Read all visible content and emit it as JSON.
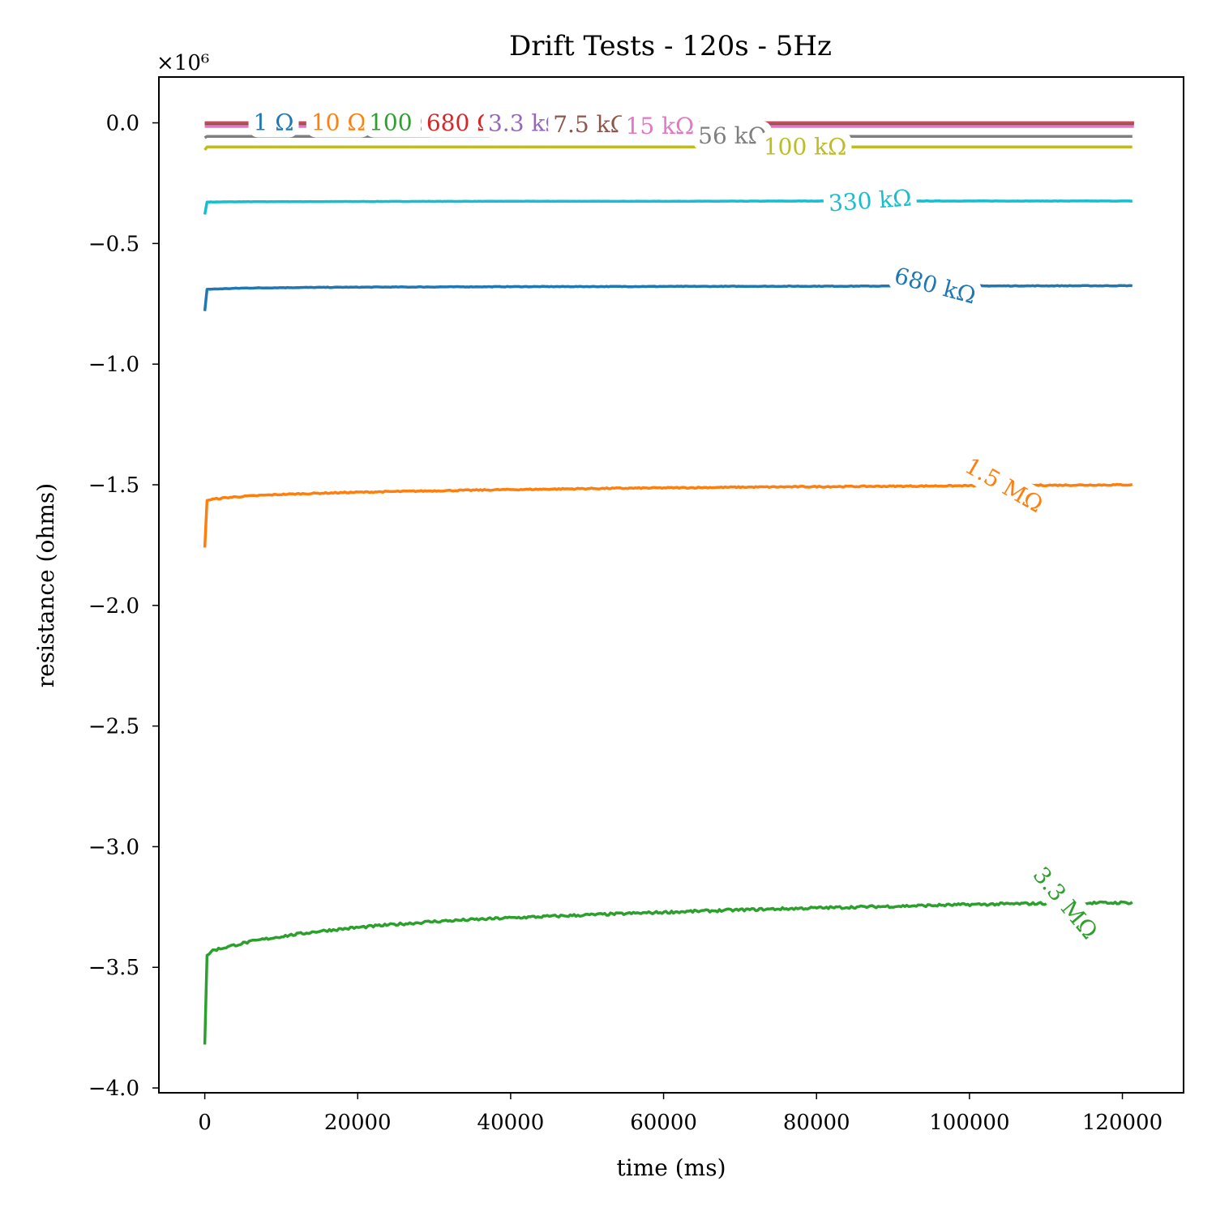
{
  "chart_data": {
    "type": "line",
    "title": "Drift Tests - 120s - 5Hz",
    "xlabel": "time (ms)",
    "ylabel": "resistance (ohms)",
    "y_multiplier_label": "×10⁶",
    "y_scale_factor": 1000000,
    "xlim": [
      -6000,
      128000
    ],
    "ylim": [
      -4020000,
      190000
    ],
    "x_ticks": [
      0,
      20000,
      40000,
      60000,
      80000,
      100000,
      120000
    ],
    "y_ticks": [
      0.0,
      -0.5,
      -1.0,
      -1.5,
      -2.0,
      -2.5,
      -3.0,
      -3.5,
      -4.0
    ],
    "x_tick_labels": [
      "0",
      "20000",
      "40000",
      "60000",
      "80000",
      "100000",
      "120000"
    ],
    "y_tick_labels": [
      "0.0",
      "−0.5",
      "−1.0",
      "−1.5",
      "−2.0",
      "−2.5",
      "−3.0",
      "−3.5",
      "−4.0"
    ],
    "grid": false,
    "legend": "inline labels",
    "series": [
      {
        "name": "1 Ω",
        "color": "#1f77b4",
        "x": [
          0,
          121500
        ],
        "y": [
          -1,
          -1
        ],
        "label_x": 9000,
        "label_angle": 0
      },
      {
        "name": "10 Ω",
        "color": "#ff7f0e",
        "x": [
          0,
          121500
        ],
        "y": [
          -10,
          -10
        ],
        "label_x": 17500,
        "label_angle": 0
      },
      {
        "name": "100 Ω",
        "color": "#2ca02c",
        "x": [
          0,
          121500
        ],
        "y": [
          -100,
          -100
        ],
        "label_x": 26000,
        "label_angle": 0
      },
      {
        "name": "680 Ω",
        "color": "#d62728",
        "x": [
          0,
          121500
        ],
        "y": [
          -680,
          -680
        ],
        "label_x": 33500,
        "label_angle": 0
      },
      {
        "name": "3.3 kΩ",
        "color": "#9467bd",
        "x": [
          0,
          121500
        ],
        "y": [
          -3300,
          -3300
        ],
        "label_x": 42000,
        "label_angle": 0
      },
      {
        "name": "7.5 kΩ",
        "color": "#8c564b",
        "x": [
          0,
          121500
        ],
        "y": [
          -7500,
          -7500
        ],
        "label_x": 50500,
        "label_angle": 0
      },
      {
        "name": "15 kΩ",
        "color": "#e377c2",
        "x": [
          0,
          121500
        ],
        "y": [
          -15000,
          -15000
        ],
        "label_x": 59500,
        "label_angle": 0
      },
      {
        "name": "56 kΩ",
        "color": "#7f7f7f",
        "x": [
          0,
          300,
          121500
        ],
        "y": [
          -62000,
          -56000,
          -56000
        ],
        "label_x": 69000,
        "label_angle": 0
      },
      {
        "name": "100 kΩ",
        "color": "#bcbd22",
        "x": [
          0,
          300,
          121500
        ],
        "y": [
          -112000,
          -100000,
          -100000
        ],
        "label_x": 78500,
        "label_angle": 0
      },
      {
        "name": "330 kΩ",
        "color": "#17becf",
        "x": [
          0,
          300,
          5000,
          20000,
          40000,
          60000,
          80000,
          100000,
          121500
        ],
        "y": [
          -380000,
          -328000,
          -327000,
          -326000,
          -325000,
          -325000,
          -324000,
          -324000,
          -324000
        ],
        "label_x": 87000,
        "label_angle": -4
      },
      {
        "name": "680 kΩ",
        "color": "#1f77b4",
        "x": [
          0,
          300,
          2000,
          5000,
          10000,
          20000,
          40000,
          60000,
          80000,
          100000,
          121500
        ],
        "y": [
          -780000,
          -690000,
          -688000,
          -685000,
          -683000,
          -681000,
          -679000,
          -678000,
          -677000,
          -676000,
          -675000
        ],
        "label_x": 95500,
        "label_angle": 15
      },
      {
        "name": "1.5 MΩ",
        "color": "#ff7f0e",
        "x": [
          0,
          300,
          1000,
          3000,
          5000,
          10000,
          15000,
          20000,
          30000,
          40000,
          50000,
          60000,
          70000,
          80000,
          90000,
          100000,
          110000,
          121500
        ],
        "y": [
          -1760000,
          -1565000,
          -1560000,
          -1553000,
          -1548000,
          -1540000,
          -1535000,
          -1531000,
          -1525000,
          -1520000,
          -1516000,
          -1513000,
          -1510000,
          -1508000,
          -1506000,
          -1504000,
          -1502000,
          -1500000
        ],
        "label_x": 104500,
        "label_angle": 30
      },
      {
        "name": "3.3 MΩ",
        "color": "#2ca02c",
        "x": [
          0,
          300,
          1000,
          3000,
          5000,
          7500,
          10000,
          15000,
          20000,
          25000,
          30000,
          40000,
          50000,
          60000,
          70000,
          80000,
          90000,
          100000,
          110000,
          121500
        ],
        "y": [
          -3820000,
          -3450000,
          -3430000,
          -3415000,
          -3400000,
          -3385000,
          -3372000,
          -3350000,
          -3335000,
          -3322000,
          -3310000,
          -3295000,
          -3283000,
          -3272000,
          -3262000,
          -3254000,
          -3247000,
          -3240000,
          -3235000,
          -3232000
        ],
        "label_x": 112500,
        "label_angle": 50
      }
    ]
  }
}
